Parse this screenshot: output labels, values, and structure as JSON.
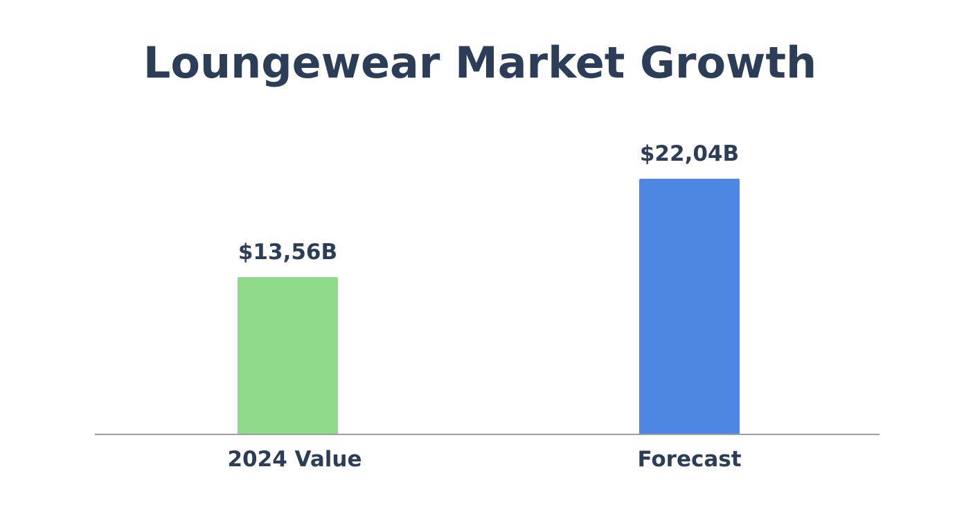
{
  "chart_data": {
    "type": "bar",
    "title": "Loungewear Market Growth",
    "xlabel": "",
    "ylabel": "",
    "categories": [
      "2024 Value",
      "Forecast"
    ],
    "values": [
      13.56,
      22.04
    ],
    "value_labels": [
      "$13,56B",
      "$22,04B"
    ],
    "bar_colors": [
      "#8fd98a",
      "#5086e3"
    ],
    "legend": "none",
    "grid": false
  }
}
